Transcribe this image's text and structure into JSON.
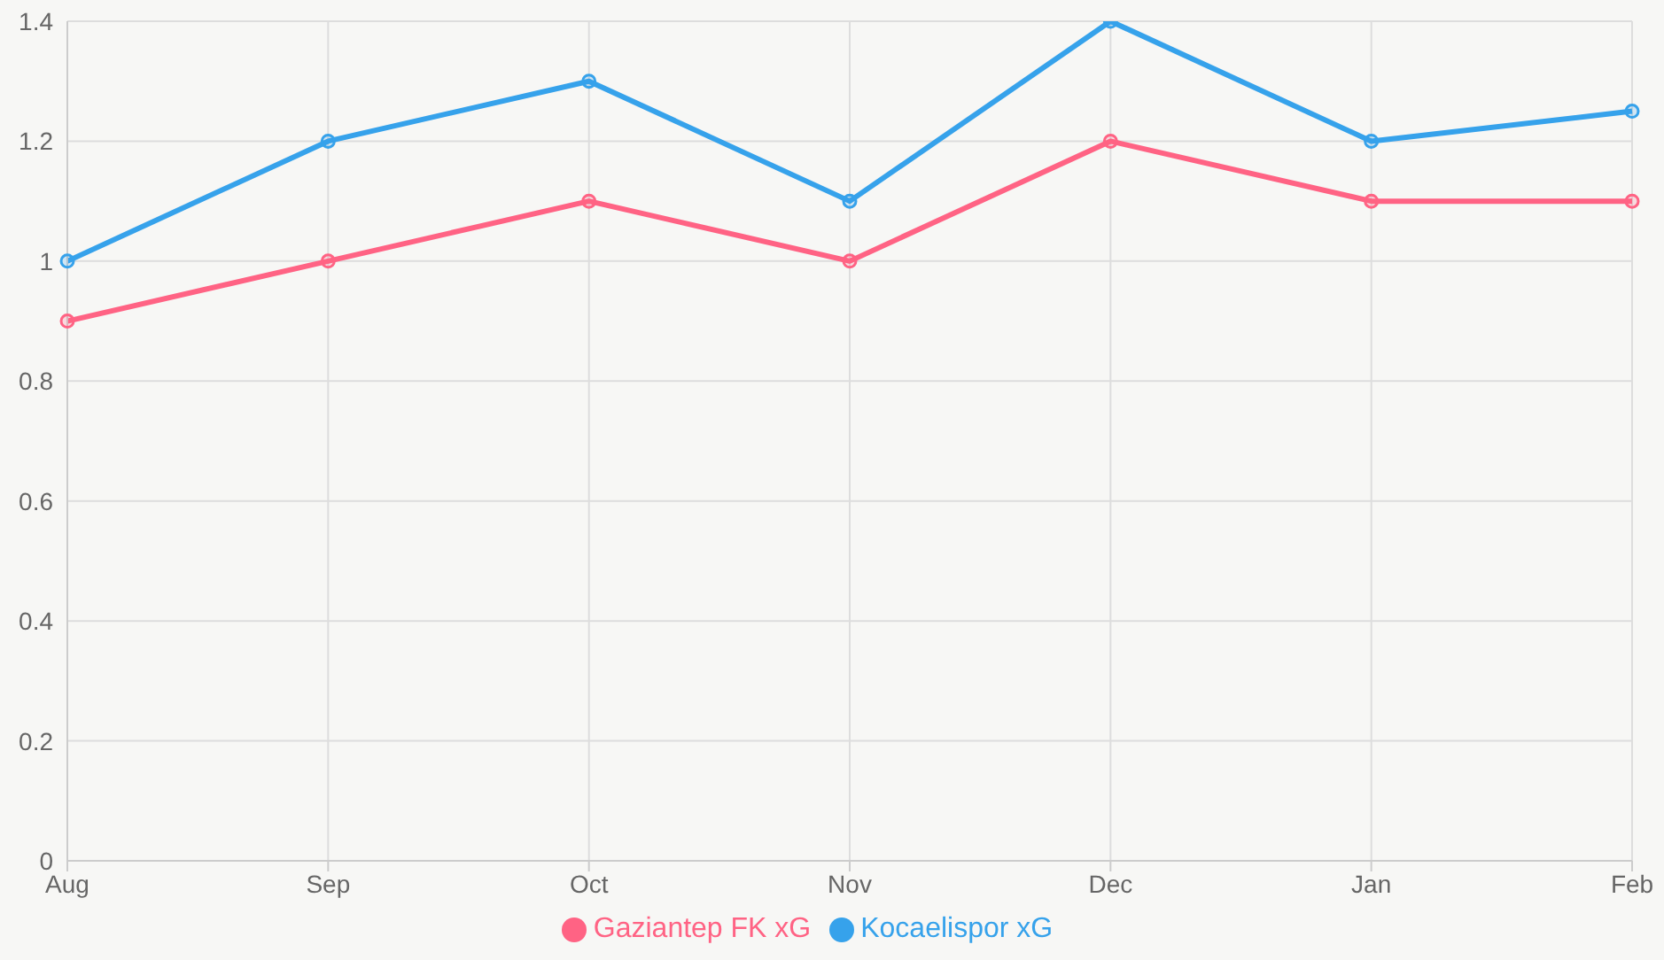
{
  "chart_data": {
    "type": "line",
    "categories": [
      "Aug",
      "Sep",
      "Oct",
      "Nov",
      "Dec",
      "Jan",
      "Feb"
    ],
    "series": [
      {
        "name": "Kocaelispor xG",
        "color": "#36a2eb",
        "values": [
          1.0,
          1.2,
          1.3,
          1.1,
          1.4,
          1.2,
          1.25
        ]
      },
      {
        "name": "Gaziantep FK xG",
        "color": "#ff6384",
        "values": [
          0.9,
          1.0,
          1.1,
          1.0,
          1.2,
          1.1,
          1.1
        ]
      }
    ],
    "ylim": [
      0,
      1.4
    ],
    "yticks": [
      0,
      0.2,
      0.4,
      0.6,
      0.8,
      1.0,
      1.2,
      1.4
    ],
    "grid": true,
    "legend": "bottom",
    "marker": "circle",
    "line_style": "solid"
  }
}
